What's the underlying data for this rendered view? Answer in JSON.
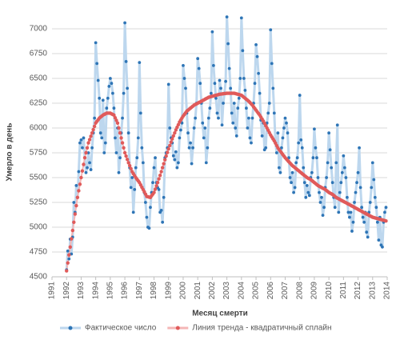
{
  "chart_data": {
    "type": "line",
    "y_label": "Умерло в день",
    "x_label": "Месяц смерти",
    "xlim": [
      1991,
      2014
    ],
    "xticks": [
      1991,
      1992,
      1993,
      1994,
      1995,
      1996,
      1997,
      1998,
      1999,
      2000,
      2001,
      2002,
      2003,
      2004,
      2005,
      2006,
      2007,
      2008,
      2009,
      2010,
      2011,
      2012,
      2013,
      2014
    ],
    "ylim": [
      4500,
      7125
    ],
    "yticks": [
      4500,
      4750,
      5000,
      5250,
      5500,
      5750,
      6000,
      6250,
      6500,
      6750,
      7000
    ],
    "grid": true,
    "legend": "bottom",
    "x": [
      1992,
      1992.083,
      1992.167,
      1992.25,
      1992.333,
      1992.417,
      1992.5,
      1992.583,
      1992.667,
      1992.75,
      1992.833,
      1992.917,
      1993,
      1993.083,
      1993.167,
      1993.25,
      1993.333,
      1993.417,
      1993.5,
      1993.583,
      1993.667,
      1993.75,
      1993.833,
      1993.917,
      1994,
      1994.083,
      1994.167,
      1994.25,
      1994.333,
      1994.417,
      1994.5,
      1994.583,
      1994.667,
      1994.75,
      1994.833,
      1994.917,
      1995,
      1995.083,
      1995.167,
      1995.25,
      1995.333,
      1995.417,
      1995.5,
      1995.583,
      1995.667,
      1995.75,
      1995.833,
      1995.917,
      1996,
      1996.083,
      1996.167,
      1996.25,
      1996.333,
      1996.417,
      1996.5,
      1996.583,
      1996.667,
      1996.75,
      1996.833,
      1996.917,
      1997,
      1997.083,
      1997.167,
      1997.25,
      1997.333,
      1997.417,
      1997.5,
      1997.583,
      1997.667,
      1997.75,
      1997.833,
      1997.917,
      1998,
      1998.083,
      1998.167,
      1998.25,
      1998.333,
      1998.417,
      1998.5,
      1998.583,
      1998.667,
      1998.75,
      1998.833,
      1998.917,
      1999,
      1999.083,
      1999.167,
      1999.25,
      1999.333,
      1999.417,
      1999.5,
      1999.583,
      1999.667,
      1999.75,
      1999.833,
      1999.917,
      2000,
      2000.083,
      2000.167,
      2000.25,
      2000.333,
      2000.417,
      2000.5,
      2000.583,
      2000.667,
      2000.75,
      2000.833,
      2000.917,
      2001,
      2001.083,
      2001.167,
      2001.25,
      2001.333,
      2001.417,
      2001.5,
      2001.583,
      2001.667,
      2001.75,
      2001.833,
      2001.917,
      2002,
      2002.083,
      2002.167,
      2002.25,
      2002.333,
      2002.417,
      2002.5,
      2002.583,
      2002.667,
      2002.75,
      2002.833,
      2002.917,
      2003,
      2003.083,
      2003.167,
      2003.25,
      2003.333,
      2003.417,
      2003.5,
      2003.583,
      2003.667,
      2003.75,
      2003.833,
      2003.917,
      2004,
      2004.083,
      2004.167,
      2004.25,
      2004.333,
      2004.417,
      2004.5,
      2004.583,
      2004.667,
      2004.75,
      2004.833,
      2004.917,
      2005,
      2005.083,
      2005.167,
      2005.25,
      2005.333,
      2005.417,
      2005.5,
      2005.583,
      2005.667,
      2005.75,
      2005.833,
      2005.917,
      2006,
      2006.083,
      2006.167,
      2006.25,
      2006.333,
      2006.417,
      2006.5,
      2006.583,
      2006.667,
      2006.75,
      2006.833,
      2006.917,
      2007,
      2007.083,
      2007.167,
      2007.25,
      2007.333,
      2007.417,
      2007.5,
      2007.583,
      2007.667,
      2007.75,
      2007.833,
      2007.917,
      2008,
      2008.083,
      2008.167,
      2008.25,
      2008.333,
      2008.417,
      2008.5,
      2008.583,
      2008.667,
      2008.75,
      2008.833,
      2008.917,
      2009,
      2009.083,
      2009.167,
      2009.25,
      2009.333,
      2009.417,
      2009.5,
      2009.583,
      2009.667,
      2009.75,
      2009.833,
      2009.917,
      2010,
      2010.083,
      2010.167,
      2010.25,
      2010.333,
      2010.417,
      2010.5,
      2010.583,
      2010.667,
      2010.75,
      2010.833,
      2010.917,
      2011,
      2011.083,
      2011.167,
      2011.25,
      2011.333,
      2011.417,
      2011.5,
      2011.583,
      2011.667,
      2011.75,
      2011.833,
      2011.917,
      2012,
      2012.083,
      2012.167,
      2012.25,
      2012.333,
      2012.417,
      2012.5,
      2012.583,
      2012.667,
      2012.75,
      2012.833,
      2012.917,
      2013,
      2013.083,
      2013.167,
      2013.25,
      2013.333,
      2013.417,
      2013.5,
      2013.583,
      2013.667,
      2013.75,
      2013.833,
      2013.917
    ],
    "series": [
      {
        "name": "Фактическое число",
        "color": "#2e75b6",
        "line_color": "#bdd7ee",
        "values": [
          4570,
          4760,
          4680,
          4880,
          4730,
          4900,
          5250,
          5150,
          5420,
          5300,
          5560,
          5850,
          5880,
          5800,
          5900,
          5700,
          5550,
          5600,
          5750,
          5650,
          5580,
          5800,
          5950,
          6100,
          6860,
          6650,
          6480,
          6300,
          5950,
          5900,
          6280,
          5750,
          5850,
          6200,
          6300,
          6420,
          6500,
          6450,
          6350,
          6200,
          5900,
          5750,
          6000,
          5550,
          5700,
          5950,
          6100,
          6350,
          7060,
          6670,
          6400,
          5950,
          5600,
          5400,
          5500,
          5150,
          5380,
          5600,
          5700,
          5900,
          6660,
          6150,
          5800,
          5650,
          5350,
          5250,
          5100,
          5000,
          4990,
          5200,
          5350,
          5450,
          5600,
          5700,
          5450,
          5400,
          5380,
          5150,
          5170,
          5050,
          5300,
          5700,
          5750,
          5800,
          6440,
          6000,
          5900,
          5850,
          5720,
          5680,
          5760,
          5600,
          5650,
          5900,
          5980,
          6050,
          6630,
          6500,
          6400,
          6150,
          5950,
          5800,
          5850,
          5640,
          5800,
          6000,
          6100,
          6250,
          6700,
          6600,
          6450,
          6250,
          6050,
          5900,
          6000,
          5650,
          5800,
          6100,
          6200,
          6350,
          6970,
          6630,
          6450,
          6300,
          6150,
          6100,
          6480,
          6400,
          6030,
          6250,
          6350,
          6470,
          7120,
          6850,
          6600,
          6400,
          6150,
          6050,
          6250,
          6000,
          5920,
          6200,
          6300,
          6500,
          7110,
          6780,
          6500,
          6380,
          6200,
          6000,
          6100,
          5900,
          5850,
          6100,
          6250,
          6450,
          6840,
          6720,
          6550,
          6350,
          6080,
          5920,
          6050,
          5780,
          5800,
          6050,
          6150,
          6250,
          6990,
          6650,
          6400,
          6150,
          5850,
          5750,
          5950,
          5600,
          5550,
          5800,
          5900,
          6000,
          6100,
          6050,
          5950,
          5700,
          5500,
          5450,
          5550,
          5350,
          5400,
          5650,
          5700,
          5850,
          6330,
          5880,
          5800,
          5600,
          5450,
          5300,
          5420,
          5350,
          5320,
          5500,
          5550,
          5700,
          5990,
          5800,
          5700,
          5500,
          5350,
          5250,
          5300,
          5120,
          5200,
          5400,
          5500,
          5650,
          5950,
          5780,
          5600,
          5450,
          5300,
          5200,
          5650,
          6030,
          5150,
          5350,
          5450,
          5550,
          5720,
          5600,
          5500,
          5300,
          5150,
          5100,
          5150,
          4960,
          5050,
          5250,
          5350,
          5450,
          5550,
          5800,
          5400,
          5200,
          5100,
          5050,
          5150,
          4950,
          4900,
          5150,
          5250,
          5400,
          5650,
          5480,
          5300,
          5200,
          5050,
          4870,
          5100,
          4820,
          4800,
          5050,
          5150,
          5200
        ]
      },
      {
        "name": "Линия тренда - квадратичный сплайн",
        "color": "#e05a5a",
        "line_color": "#f4b6b6",
        "values": [
          4560,
          4640,
          4720,
          4800,
          4883,
          4967,
          5050,
          5133,
          5217,
          5300,
          5367,
          5433,
          5500,
          5567,
          5633,
          5700,
          5750,
          5800,
          5850,
          5883,
          5917,
          5950,
          5983,
          6017,
          6050,
          6067,
          6083,
          6100,
          6110,
          6120,
          6130,
          6137,
          6143,
          6150,
          6150,
          6150,
          6150,
          6143,
          6137,
          6130,
          6103,
          6077,
          6050,
          6000,
          5950,
          5900,
          5850,
          5800,
          5750,
          5717,
          5683,
          5650,
          5620,
          5590,
          5560,
          5540,
          5520,
          5500,
          5483,
          5467,
          5450,
          5427,
          5403,
          5380,
          5357,
          5333,
          5310,
          5307,
          5303,
          5300,
          5317,
          5333,
          5350,
          5383,
          5417,
          5450,
          5487,
          5523,
          5560,
          5600,
          5640,
          5680,
          5717,
          5753,
          5790,
          5823,
          5857,
          5890,
          5920,
          5950,
          5980,
          6007,
          6033,
          6060,
          6080,
          6100,
          6120,
          6137,
          6153,
          6170,
          6180,
          6190,
          6200,
          6210,
          6220,
          6230,
          6237,
          6243,
          6250,
          6257,
          6263,
          6270,
          6277,
          6283,
          6290,
          6297,
          6303,
          6310,
          6313,
          6317,
          6320,
          6323,
          6327,
          6330,
          6333,
          6337,
          6340,
          6342,
          6343,
          6345,
          6347,
          6348,
          6350,
          6350,
          6350,
          6350,
          6350,
          6350,
          6350,
          6347,
          6343,
          6340,
          6337,
          6333,
          6330,
          6320,
          6310,
          6300,
          6290,
          6280,
          6270,
          6257,
          6243,
          6230,
          6213,
          6197,
          6180,
          6163,
          6147,
          6130,
          6110,
          6090,
          6070,
          6047,
          6023,
          6000,
          5977,
          5953,
          5930,
          5910,
          5890,
          5870,
          5847,
          5823,
          5800,
          5783,
          5767,
          5750,
          5733,
          5717,
          5700,
          5687,
          5673,
          5660,
          5647,
          5633,
          5620,
          5610,
          5600,
          5590,
          5580,
          5570,
          5560,
          5550,
          5540,
          5530,
          5520,
          5510,
          5500,
          5493,
          5487,
          5480,
          5470,
          5460,
          5450,
          5440,
          5430,
          5420,
          5413,
          5407,
          5400,
          5393,
          5387,
          5380,
          5370,
          5360,
          5350,
          5343,
          5337,
          5330,
          5320,
          5310,
          5300,
          5293,
          5287,
          5280,
          5273,
          5267,
          5260,
          5253,
          5247,
          5240,
          5233,
          5227,
          5220,
          5213,
          5207,
          5200,
          5193,
          5187,
          5180,
          5173,
          5167,
          5160,
          5153,
          5147,
          5140,
          5133,
          5127,
          5120,
          5113,
          5107,
          5100,
          5097,
          5093,
          5090,
          5087,
          5083,
          5080,
          5077,
          5073,
          5070,
          5067,
          5063
        ]
      }
    ]
  }
}
